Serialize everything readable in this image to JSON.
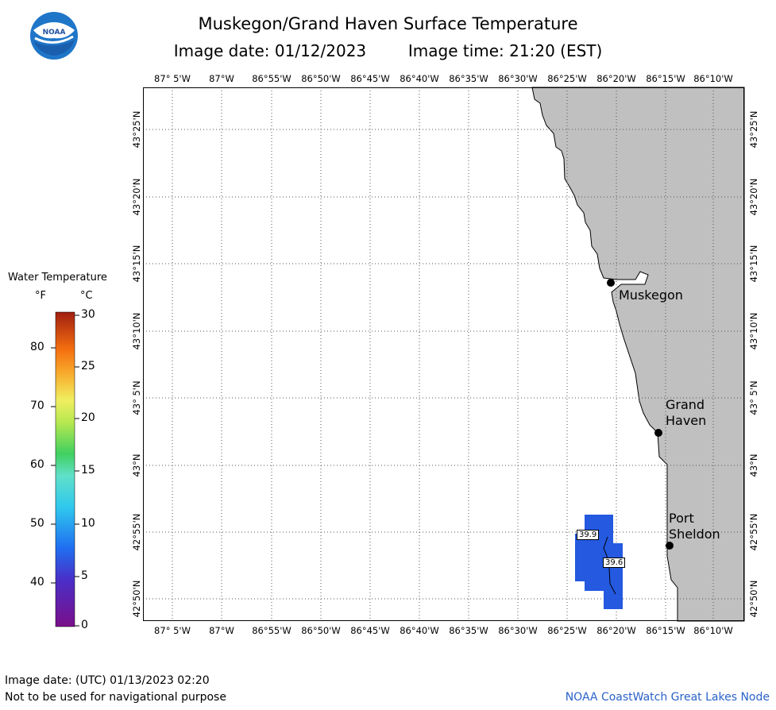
{
  "header": {
    "title": "Muskegon/Grand Haven Surface Temperature",
    "image_date_label": "Image date: 01/12/2023",
    "image_time_label": "Image time: 21:20 (EST)"
  },
  "logo": {
    "text": "NOAA"
  },
  "map": {
    "lon_ticks": [
      "87° 5'W",
      "87°W",
      "86°55'W",
      "86°50'W",
      "86°45'W",
      "86°40'W",
      "86°35'W",
      "86°30'W",
      "86°25'W",
      "86°20'W",
      "86°15'W",
      "86°10'W"
    ],
    "lat_ticks": [
      "43°25'N",
      "43°20'N",
      "43°15'N",
      "43°10'N",
      "43° 5'N",
      "43°N",
      "42°55'N",
      "42°50'N"
    ],
    "cities": [
      {
        "name": "Muskegon"
      },
      {
        "name": "Grand\nHaven"
      },
      {
        "name": "Port\nSheldon"
      }
    ],
    "temperature_labels": [
      "39.9",
      "39.6"
    ],
    "colors": {
      "land": "#c0c0c0",
      "water_cold": "#2459e0",
      "grid": "#555555"
    }
  },
  "legend": {
    "title": "Water Temperature",
    "unit_f": "°F",
    "unit_c": "°C",
    "f_ticks": [
      "80",
      "70",
      "60",
      "50",
      "40"
    ],
    "c_ticks": [
      "30",
      "25",
      "20",
      "15",
      "10",
      "5",
      "0"
    ]
  },
  "footer": {
    "utc_date": "Image date: (UTC) 01/13/2023  02:20",
    "disclaimer": "Not to be used for navigational purpose",
    "credit": "NOAA CoastWatch Great Lakes Node"
  }
}
